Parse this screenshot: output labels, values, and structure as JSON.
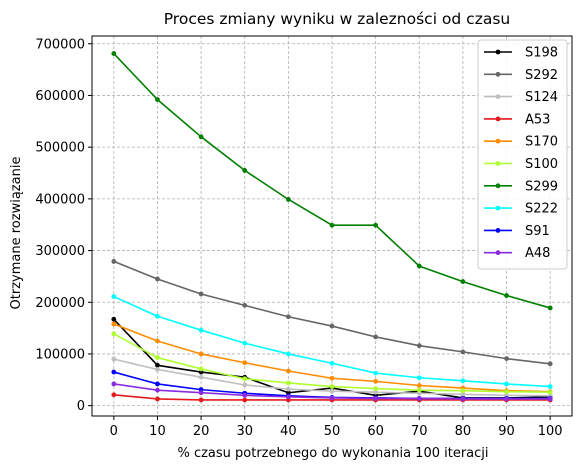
{
  "chart_data": {
    "type": "line",
    "title": "Proces zmiany wyniku w zalezności od czasu",
    "xlabel": "% czasu potrzebnego do wykonania 100 iteracji",
    "ylabel": "Otrzymane rozwiązanie",
    "x": [
      0,
      10,
      20,
      30,
      40,
      50,
      60,
      70,
      80,
      90,
      100
    ],
    "xticks": [
      "0",
      "10",
      "20",
      "30",
      "40",
      "50",
      "60",
      "70",
      "80",
      "90",
      "100"
    ],
    "yticks": [
      0,
      100000,
      200000,
      300000,
      400000,
      500000,
      600000,
      700000
    ],
    "ytick_labels": [
      "0",
      "100000",
      "200000",
      "300000",
      "400000",
      "500000",
      "600000",
      "700000"
    ],
    "xlim": [
      -5,
      105
    ],
    "ylim": [
      -20000,
      715000
    ],
    "grid": true,
    "legend_position": "top-right",
    "series": [
      {
        "name": "S198",
        "color": "#000000",
        "values": [
          167000,
          78000,
          65000,
          55000,
          25000,
          34000,
          20000,
          28000,
          15000,
          15000,
          17000
        ]
      },
      {
        "name": "S292",
        "color": "#666666",
        "values": [
          279000,
          245000,
          216000,
          194000,
          172000,
          154000,
          133000,
          116000,
          104000,
          91000,
          81000
        ]
      },
      {
        "name": "S124",
        "color": "#bfbfbf",
        "values": [
          90000,
          70000,
          55000,
          40000,
          32000,
          28000,
          26000,
          24000,
          22000,
          20000,
          19000
        ]
      },
      {
        "name": "A53",
        "color": "#e41a1c",
        "values": [
          21000,
          13000,
          11000,
          11000,
          11000,
          11000,
          11000,
          11000,
          11000,
          11000,
          11000
        ]
      },
      {
        "name": "S170",
        "color": "#ff8c00",
        "values": [
          158000,
          125000,
          100000,
          83000,
          67000,
          53000,
          47000,
          39000,
          34000,
          29000,
          27000
        ]
      },
      {
        "name": "S100",
        "color": "#adff2f",
        "values": [
          139000,
          93000,
          71000,
          52000,
          44000,
          37000,
          33000,
          30000,
          29000,
          27000,
          26000
        ]
      },
      {
        "name": "S299",
        "color": "#008000",
        "values": [
          681000,
          592000,
          520000,
          455000,
          399000,
          349000,
          349000,
          270000,
          240000,
          213000,
          189000
        ]
      },
      {
        "name": "S222",
        "color": "#00ffff",
        "values": [
          211000,
          173000,
          146000,
          121000,
          100000,
          82000,
          63000,
          54000,
          48000,
          42000,
          37000
        ]
      },
      {
        "name": "S91",
        "color": "#0000ff",
        "values": [
          65000,
          42000,
          31000,
          24000,
          19000,
          16000,
          15000,
          14000,
          14000,
          14000,
          14000
        ]
      },
      {
        "name": "A48",
        "color": "#8a2be2",
        "values": [
          42000,
          30000,
          25000,
          20000,
          17000,
          15000,
          14000,
          14000,
          13000,
          13000,
          13000
        ]
      }
    ]
  }
}
